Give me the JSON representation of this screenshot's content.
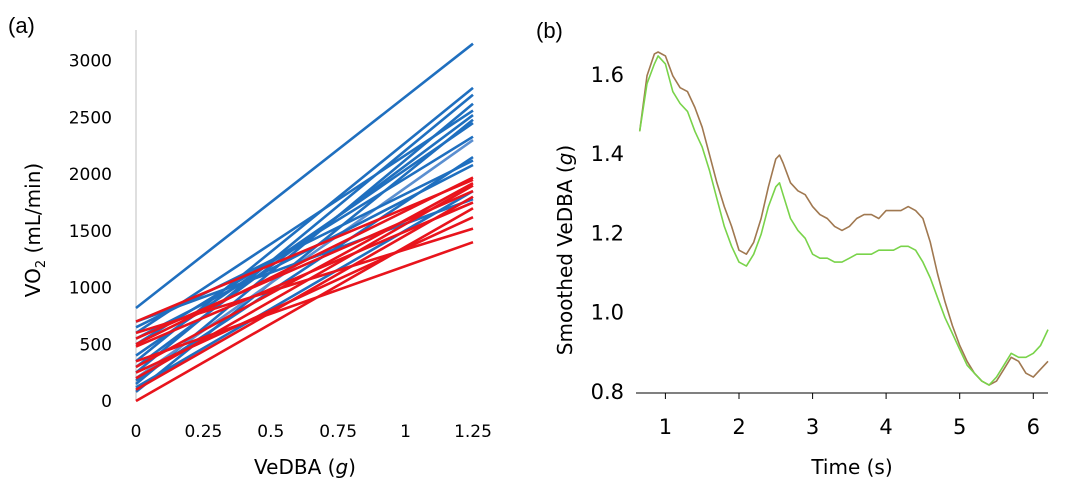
{
  "chart_data": [
    {
      "panel_label": "(a)",
      "type": "line",
      "xlabel_prefix": "VeDBA (",
      "xlabel_italic": "g",
      "xlabel_suffix": ")",
      "ylabel_prefix": "VO",
      "ylabel_sub": "2",
      "ylabel_suffix": " (mL/min)",
      "xlim": [
        0,
        1.25
      ],
      "ylim": [
        0,
        3200
      ],
      "x_ticks": [
        "0",
        "0.25",
        "0.5",
        "0.75",
        "1",
        "1.25"
      ],
      "y_ticks": [
        "0",
        "500",
        "1000",
        "1500",
        "2000",
        "2500",
        "3000"
      ],
      "x_tick_values": [
        0,
        0.25,
        0.5,
        0.75,
        1,
        1.25
      ],
      "y_tick_values": [
        0,
        500,
        1000,
        1500,
        2000,
        2500,
        3000
      ],
      "grid": false,
      "legend": "none",
      "series": [
        {
          "color": "#1f6fbf",
          "x": [
            0,
            1.25
          ],
          "y": [
            820,
            3150
          ]
        },
        {
          "color": "#1f6fbf",
          "x": [
            0,
            1.25
          ],
          "y": [
            350,
            2760
          ]
        },
        {
          "color": "#1f6fbf",
          "x": [
            0,
            1.25
          ],
          "y": [
            250,
            2700
          ]
        },
        {
          "color": "#1f6fbf",
          "x": [
            0,
            1.25
          ],
          "y": [
            150,
            2620
          ]
        },
        {
          "color": "#1f6fbf",
          "x": [
            0,
            1.25
          ],
          "y": [
            600,
            2560
          ]
        },
        {
          "color": "#1f6fbf",
          "x": [
            0,
            1.25
          ],
          "y": [
            300,
            2520
          ]
        },
        {
          "color": "#1f6fbf",
          "x": [
            0,
            1.25
          ],
          "y": [
            80,
            2480
          ]
        },
        {
          "color": "#1f6fbf",
          "x": [
            0,
            1.25
          ],
          "y": [
            400,
            2450
          ]
        },
        {
          "color": "#1f6fbf",
          "x": [
            0,
            1.25
          ],
          "y": [
            500,
            2330
          ]
        },
        {
          "color": "#5b8fd0",
          "x": [
            0,
            1.25
          ],
          "y": [
            200,
            2300
          ]
        },
        {
          "color": "#1f6fbf",
          "x": [
            0,
            1.25
          ],
          "y": [
            180,
            2150
          ]
        },
        {
          "color": "#1f6fbf",
          "x": [
            0,
            1.25
          ],
          "y": [
            650,
            2120
          ]
        },
        {
          "color": "#1f6fbf",
          "x": [
            0,
            1.25
          ],
          "y": [
            550,
            2080
          ]
        },
        {
          "color": "#1f6fbf",
          "x": [
            0,
            1.25
          ],
          "y": [
            120,
            1850
          ]
        },
        {
          "color": "#1f6fbf",
          "x": [
            0,
            1.25
          ],
          "y": [
            700,
            1780
          ]
        },
        {
          "color": "#e8141c",
          "x": [
            0,
            1.25
          ],
          "y": [
            700,
            1950
          ]
        },
        {
          "color": "#e8141c",
          "x": [
            0,
            1.25
          ],
          "y": [
            500,
            1970
          ]
        },
        {
          "color": "#e8141c",
          "x": [
            0,
            1.25
          ],
          "y": [
            300,
            1920
          ]
        },
        {
          "color": "#e8141c",
          "x": [
            0,
            1.25
          ],
          "y": [
            200,
            1900
          ]
        },
        {
          "color": "#e8141c",
          "x": [
            0,
            1.25
          ],
          "y": [
            550,
            1850
          ]
        },
        {
          "color": "#e8141c",
          "x": [
            0,
            1.25
          ],
          "y": [
            100,
            1800
          ]
        },
        {
          "color": "#e8141c",
          "x": [
            0,
            1.25
          ],
          "y": [
            480,
            1750
          ]
        },
        {
          "color": "#e8141c",
          "x": [
            0,
            1.25
          ],
          "y": [
            0,
            1700
          ]
        },
        {
          "color": "#e8141c",
          "x": [
            0,
            1.25
          ],
          "y": [
            250,
            1620
          ]
        },
        {
          "color": "#e8141c",
          "x": [
            0,
            1.25
          ],
          "y": [
            600,
            1520
          ]
        },
        {
          "color": "#e8141c",
          "x": [
            0,
            1.25
          ],
          "y": [
            350,
            1400
          ]
        }
      ]
    },
    {
      "panel_label": "(b)",
      "type": "line",
      "xlabel": "Time (s)",
      "ylabel_prefix": "Smoothed VeDBA  (",
      "ylabel_italic": "g",
      "ylabel_suffix": ")",
      "xlim": [
        0.6,
        6.2
      ],
      "ylim": [
        0.8,
        1.67
      ],
      "x_ticks": [
        "1",
        "2",
        "3",
        "4",
        "5",
        "6"
      ],
      "y_ticks": [
        "0.8",
        "1.0",
        "1.2",
        "1.4",
        "1.6"
      ],
      "x_tick_values": [
        1,
        2,
        3,
        4,
        5,
        6
      ],
      "y_tick_values": [
        0.8,
        1.0,
        1.2,
        1.4,
        1.6
      ],
      "grid": false,
      "legend": "none",
      "series": [
        {
          "color": "#a07850",
          "x": [
            0.65,
            0.75,
            0.85,
            0.9,
            1.0,
            1.1,
            1.2,
            1.3,
            1.4,
            1.5,
            1.6,
            1.7,
            1.8,
            1.9,
            2.0,
            2.1,
            2.2,
            2.3,
            2.4,
            2.5,
            2.55,
            2.6,
            2.7,
            2.8,
            2.9,
            3.0,
            3.1,
            3.2,
            3.3,
            3.4,
            3.5,
            3.6,
            3.7,
            3.8,
            3.9,
            4.0,
            4.1,
            4.2,
            4.3,
            4.4,
            4.5,
            4.6,
            4.7,
            4.8,
            4.9,
            5.0,
            5.1,
            5.2,
            5.3,
            5.4,
            5.5,
            5.6,
            5.7,
            5.8,
            5.9,
            6.0,
            6.1,
            6.2
          ],
          "y": [
            1.46,
            1.6,
            1.655,
            1.66,
            1.65,
            1.6,
            1.57,
            1.56,
            1.52,
            1.47,
            1.4,
            1.33,
            1.27,
            1.22,
            1.16,
            1.15,
            1.18,
            1.24,
            1.32,
            1.39,
            1.4,
            1.38,
            1.33,
            1.31,
            1.3,
            1.27,
            1.25,
            1.24,
            1.22,
            1.21,
            1.22,
            1.24,
            1.25,
            1.25,
            1.24,
            1.26,
            1.26,
            1.26,
            1.27,
            1.26,
            1.24,
            1.18,
            1.1,
            1.03,
            0.97,
            0.92,
            0.88,
            0.85,
            0.83,
            0.82,
            0.83,
            0.86,
            0.89,
            0.88,
            0.85,
            0.84,
            0.86,
            0.88
          ]
        },
        {
          "color": "#79d34a",
          "x": [
            0.65,
            0.75,
            0.85,
            0.9,
            1.0,
            1.1,
            1.2,
            1.3,
            1.4,
            1.5,
            1.6,
            1.7,
            1.8,
            1.9,
            2.0,
            2.1,
            2.2,
            2.3,
            2.4,
            2.5,
            2.55,
            2.6,
            2.7,
            2.8,
            2.9,
            3.0,
            3.1,
            3.2,
            3.3,
            3.4,
            3.5,
            3.6,
            3.7,
            3.8,
            3.9,
            4.0,
            4.1,
            4.2,
            4.3,
            4.4,
            4.5,
            4.6,
            4.7,
            4.8,
            4.9,
            5.0,
            5.1,
            5.2,
            5.3,
            5.4,
            5.5,
            5.6,
            5.7,
            5.8,
            5.9,
            6.0,
            6.1,
            6.2
          ],
          "y": [
            1.46,
            1.58,
            1.63,
            1.65,
            1.63,
            1.56,
            1.53,
            1.51,
            1.46,
            1.42,
            1.36,
            1.29,
            1.22,
            1.17,
            1.13,
            1.12,
            1.15,
            1.2,
            1.27,
            1.32,
            1.33,
            1.3,
            1.24,
            1.21,
            1.19,
            1.15,
            1.14,
            1.14,
            1.13,
            1.13,
            1.14,
            1.15,
            1.15,
            1.15,
            1.16,
            1.16,
            1.16,
            1.17,
            1.17,
            1.16,
            1.13,
            1.09,
            1.04,
            0.99,
            0.95,
            0.91,
            0.87,
            0.85,
            0.83,
            0.82,
            0.84,
            0.87,
            0.9,
            0.89,
            0.89,
            0.9,
            0.92,
            0.96
          ]
        }
      ]
    }
  ]
}
